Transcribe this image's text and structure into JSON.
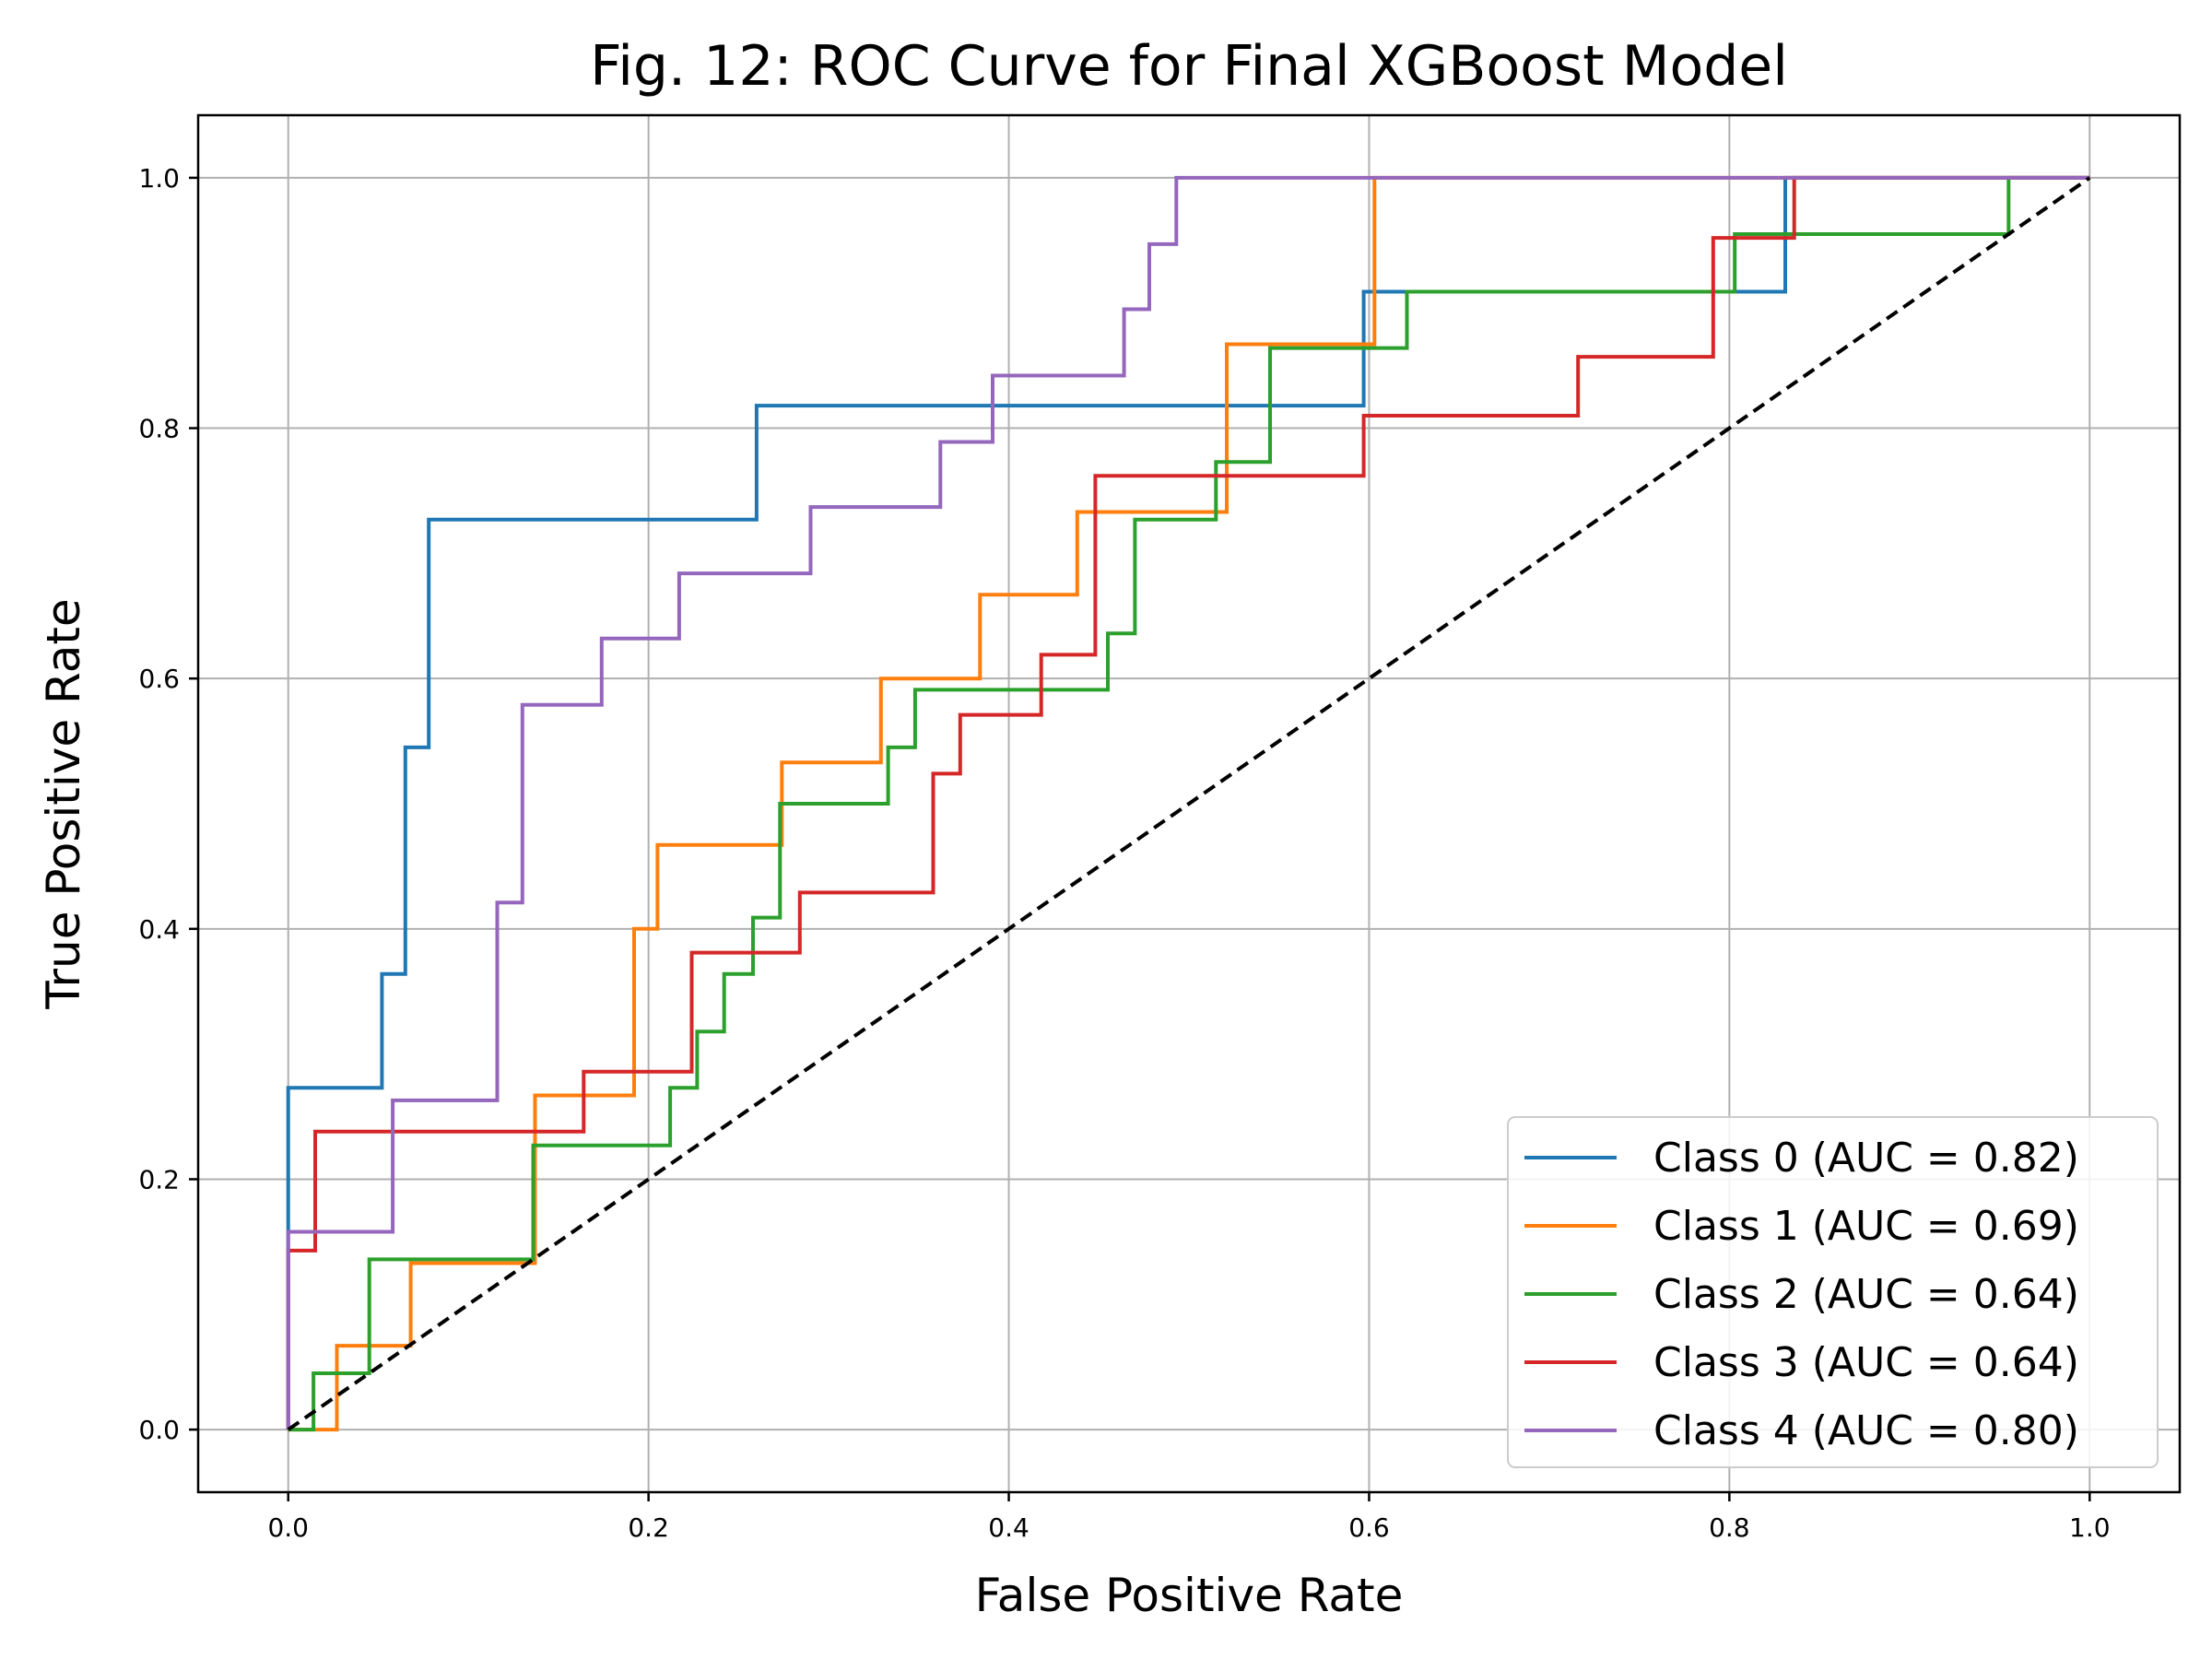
{
  "chart_data": {
    "type": "line",
    "title": "Fig. 12: ROC Curve for Final XGBoost Model",
    "xlabel": "False Positive Rate",
    "ylabel": "True Positive Rate",
    "xlim": [
      -0.05,
      1.05
    ],
    "ylim": [
      -0.05,
      1.05
    ],
    "xticks": [
      0.0,
      0.2,
      0.4,
      0.6,
      0.8,
      1.0
    ],
    "xtick_labels": [
      "0.0",
      "0.2",
      "0.4",
      "0.6",
      "0.8",
      "1.0"
    ],
    "yticks": [
      0.0,
      0.2,
      0.4,
      0.6,
      0.8,
      1.0
    ],
    "ytick_labels": [
      "0.0",
      "0.2",
      "0.4",
      "0.6",
      "0.8",
      "1.0"
    ],
    "grid": true,
    "legend_position": "lower-right",
    "series": [
      {
        "name": "Class 0 (AUC = 0.82)",
        "color": "#1f77b4",
        "style": "step",
        "x": [
          0.0,
          0.0,
          0.052,
          0.052,
          0.065,
          0.065,
          0.078,
          0.078,
          0.26,
          0.26,
          0.597,
          0.597,
          0.831,
          0.831,
          1.0
        ],
        "y": [
          0.0,
          0.273,
          0.273,
          0.364,
          0.364,
          0.545,
          0.545,
          0.727,
          0.727,
          0.818,
          0.818,
          0.909,
          0.909,
          1.0,
          1.0
        ]
      },
      {
        "name": "Class 1 (AUC = 0.69)",
        "color": "#ff7f0e",
        "style": "step",
        "x": [
          0.0,
          0.027,
          0.027,
          0.068,
          0.068,
          0.137,
          0.137,
          0.192,
          0.192,
          0.205,
          0.205,
          0.274,
          0.274,
          0.329,
          0.329,
          0.384,
          0.384,
          0.438,
          0.438,
          0.521,
          0.521,
          0.603,
          0.603,
          1.0
        ],
        "y": [
          0.0,
          0.0,
          0.067,
          0.067,
          0.133,
          0.133,
          0.267,
          0.267,
          0.4,
          0.4,
          0.467,
          0.467,
          0.533,
          0.533,
          0.6,
          0.6,
          0.667,
          0.667,
          0.733,
          0.733,
          0.867,
          0.867,
          1.0,
          1.0
        ]
      },
      {
        "name": "Class 2 (AUC = 0.64)",
        "color": "#2ca02c",
        "style": "step",
        "x": [
          0.0,
          0.014,
          0.014,
          0.045,
          0.045,
          0.136,
          0.136,
          0.212,
          0.212,
          0.227,
          0.227,
          0.242,
          0.242,
          0.258,
          0.258,
          0.273,
          0.273,
          0.333,
          0.333,
          0.348,
          0.348,
          0.455,
          0.455,
          0.47,
          0.47,
          0.515,
          0.515,
          0.545,
          0.545,
          0.621,
          0.621,
          0.803,
          0.803,
          0.955,
          0.955,
          1.0
        ],
        "y": [
          0.0,
          0.0,
          0.045,
          0.045,
          0.136,
          0.136,
          0.227,
          0.227,
          0.273,
          0.273,
          0.318,
          0.318,
          0.364,
          0.364,
          0.409,
          0.409,
          0.5,
          0.5,
          0.545,
          0.545,
          0.591,
          0.591,
          0.636,
          0.636,
          0.727,
          0.727,
          0.773,
          0.773,
          0.864,
          0.864,
          0.909,
          0.909,
          0.955,
          0.955,
          1.0,
          1.0
        ]
      },
      {
        "name": "Class 3 (AUC = 0.64)",
        "color": "#d62728",
        "style": "step",
        "x": [
          0.0,
          0.0,
          0.015,
          0.015,
          0.164,
          0.164,
          0.224,
          0.224,
          0.284,
          0.284,
          0.358,
          0.358,
          0.373,
          0.373,
          0.418,
          0.418,
          0.448,
          0.448,
          0.597,
          0.597,
          0.716,
          0.716,
          0.791,
          0.791,
          0.836,
          0.836,
          1.0
        ],
        "y": [
          0.0,
          0.143,
          0.143,
          0.238,
          0.238,
          0.286,
          0.286,
          0.381,
          0.381,
          0.429,
          0.429,
          0.524,
          0.524,
          0.571,
          0.571,
          0.619,
          0.619,
          0.762,
          0.762,
          0.81,
          0.81,
          0.857,
          0.857,
          0.952,
          0.952,
          1.0,
          1.0
        ]
      },
      {
        "name": "Class 4 (AUC = 0.80)",
        "color": "#9467bd",
        "style": "step",
        "x": [
          0.0,
          0.0,
          0.058,
          0.058,
          0.116,
          0.116,
          0.13,
          0.13,
          0.174,
          0.174,
          0.217,
          0.217,
          0.29,
          0.29,
          0.362,
          0.362,
          0.391,
          0.391,
          0.464,
          0.464,
          0.478,
          0.478,
          0.493,
          0.493,
          1.0
        ],
        "y": [
          0.0,
          0.158,
          0.158,
          0.263,
          0.263,
          0.421,
          0.421,
          0.579,
          0.579,
          0.632,
          0.632,
          0.684,
          0.684,
          0.737,
          0.737,
          0.789,
          0.789,
          0.842,
          0.842,
          0.895,
          0.895,
          0.947,
          0.947,
          1.0,
          1.0
        ]
      }
    ],
    "reference_line": {
      "x": [
        0.0,
        1.0
      ],
      "y": [
        0.0,
        1.0
      ],
      "color": "#000000",
      "dash": "dashed"
    }
  }
}
